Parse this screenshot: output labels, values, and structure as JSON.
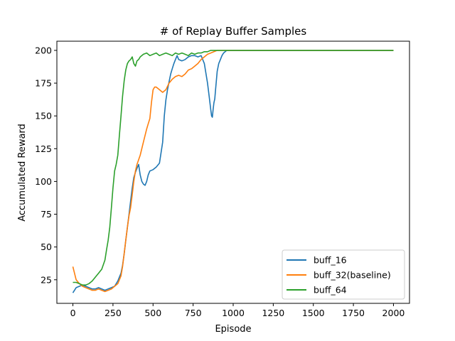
{
  "chart_data": {
    "type": "line",
    "title": "# of Replay Buffer Samples",
    "xlabel": "Episode",
    "ylabel": "Accumulated Reward",
    "xlim": [
      -100,
      2100
    ],
    "ylim": [
      7,
      207
    ],
    "xticks": [
      0,
      250,
      500,
      750,
      1000,
      1250,
      1500,
      1750,
      2000
    ],
    "yticks": [
      25,
      50,
      75,
      100,
      125,
      150,
      175,
      200
    ],
    "grid": false,
    "legend_position": "lower right",
    "series": [
      {
        "name": "buff_16",
        "color": "#1f77b4",
        "x": [
          0,
          20,
          40,
          60,
          80,
          100,
          120,
          140,
          160,
          180,
          200,
          220,
          240,
          260,
          280,
          300,
          310,
          320,
          330,
          340,
          350,
          360,
          370,
          380,
          390,
          400,
          410,
          420,
          430,
          440,
          450,
          460,
          470,
          480,
          500,
          520,
          540,
          560,
          570,
          580,
          590,
          600,
          610,
          620,
          630,
          640,
          650,
          660,
          680,
          700,
          720,
          740,
          760,
          780,
          800,
          820,
          840,
          850,
          860,
          865,
          870,
          875,
          880,
          885,
          890,
          900,
          910,
          920,
          930,
          940,
          950,
          960,
          1000,
          1200,
          1400,
          1600,
          1800,
          2000
        ],
        "y": [
          15,
          19,
          20,
          21,
          20,
          19,
          18,
          18,
          19,
          18,
          17,
          18,
          19,
          20,
          24,
          30,
          36,
          45,
          55,
          65,
          75,
          85,
          95,
          103,
          107,
          110,
          113,
          105,
          100,
          98,
          97,
          100,
          105,
          108,
          109,
          111,
          114,
          130,
          150,
          162,
          170,
          176,
          182,
          186,
          190,
          193,
          196,
          193,
          192,
          193,
          195,
          196,
          196,
          195,
          196,
          190,
          175,
          165,
          155,
          150,
          149,
          155,
          160,
          163,
          170,
          184,
          190,
          193,
          196,
          198,
          199,
          200,
          200,
          200,
          200,
          200,
          200,
          200
        ]
      },
      {
        "name": "buff_32(baseline)",
        "color": "#ff7f0e",
        "x": [
          0,
          20,
          40,
          60,
          80,
          100,
          120,
          140,
          160,
          180,
          200,
          220,
          240,
          260,
          280,
          300,
          310,
          320,
          330,
          340,
          350,
          360,
          370,
          380,
          390,
          400,
          420,
          440,
          460,
          470,
          480,
          490,
          500,
          510,
          520,
          540,
          560,
          580,
          600,
          620,
          640,
          660,
          680,
          700,
          720,
          740,
          760,
          780,
          800,
          820,
          840,
          860,
          880,
          900,
          920,
          960,
          1000,
          1200,
          1400,
          1600,
          1800,
          2000
        ],
        "y": [
          35,
          25,
          22,
          20,
          19,
          18,
          17,
          17,
          18,
          17,
          16,
          17,
          18,
          20,
          22,
          28,
          35,
          45,
          55,
          65,
          74,
          80,
          90,
          100,
          108,
          113,
          120,
          130,
          140,
          144,
          148,
          160,
          170,
          172,
          172,
          170,
          168,
          170,
          175,
          178,
          180,
          181,
          180,
          182,
          185,
          186,
          188,
          190,
          193,
          195,
          197,
          198,
          199,
          200,
          200,
          200,
          200,
          200,
          200,
          200,
          200,
          200
        ]
      },
      {
        "name": "buff_64",
        "color": "#2ca02c",
        "x": [
          0,
          20,
          40,
          60,
          80,
          100,
          120,
          140,
          160,
          180,
          200,
          210,
          220,
          230,
          240,
          250,
          260,
          270,
          280,
          290,
          300,
          310,
          320,
          330,
          340,
          350,
          360,
          370,
          380,
          390,
          400,
          410,
          420,
          440,
          460,
          480,
          500,
          520,
          540,
          560,
          580,
          600,
          620,
          640,
          660,
          680,
          700,
          720,
          740,
          760,
          780,
          800,
          820,
          840,
          860,
          880,
          900,
          950,
          1000,
          1200,
          1400,
          1600,
          1800,
          2000
        ],
        "y": [
          23,
          23,
          22,
          21,
          21,
          22,
          24,
          27,
          30,
          33,
          40,
          48,
          55,
          65,
          80,
          95,
          108,
          113,
          120,
          135,
          150,
          165,
          177,
          185,
          190,
          192,
          193,
          195,
          190,
          188,
          192,
          193,
          195,
          197,
          198,
          196,
          197,
          198,
          196,
          197,
          198,
          197,
          196,
          198,
          197,
          198,
          197,
          196,
          198,
          197,
          198,
          198,
          199,
          199,
          200,
          200,
          200,
          200,
          200,
          200,
          200,
          200,
          200,
          200
        ]
      }
    ]
  }
}
